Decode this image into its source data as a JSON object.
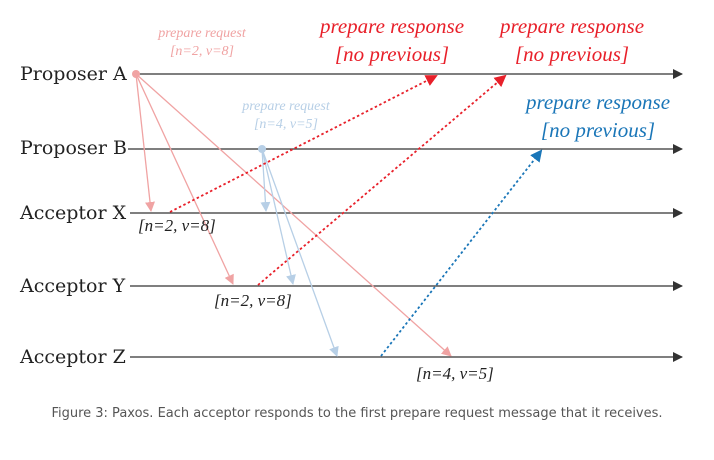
{
  "colors": {
    "timeline": "#333333",
    "proposer_a_request": "#f0a3a3",
    "proposer_a_response": "#e8202a",
    "proposer_b_request": "#b7cfe6",
    "proposer_b_response": "#1a76b8"
  },
  "lanes": [
    {
      "id": "proposer-a",
      "label": "Proposer A"
    },
    {
      "id": "proposer-b",
      "label": "Proposer B"
    },
    {
      "id": "acceptor-x",
      "label": "Acceptor X"
    },
    {
      "id": "acceptor-y",
      "label": "Acceptor Y"
    },
    {
      "id": "acceptor-z",
      "label": "Acceptor Z"
    }
  ],
  "labels": {
    "request_a_title": "prepare request",
    "request_a_values": "[n=2, v=8]",
    "request_b_title": "prepare request",
    "request_b_values": "[n=4, v=5]",
    "response_1_title": "prepare response",
    "response_1_values": "[no previous]",
    "response_2_title": "prepare response",
    "response_2_values": "[no previous]",
    "response_3_title": "prepare response",
    "response_3_values": "[no previous]",
    "state_x": "[n=2, v=8]",
    "state_y": "[n=2, v=8]",
    "state_z": "[n=4, v=5]"
  },
  "caption": "Figure 3: Paxos. Each acceptor responds to the first prepare request message that it receives."
}
